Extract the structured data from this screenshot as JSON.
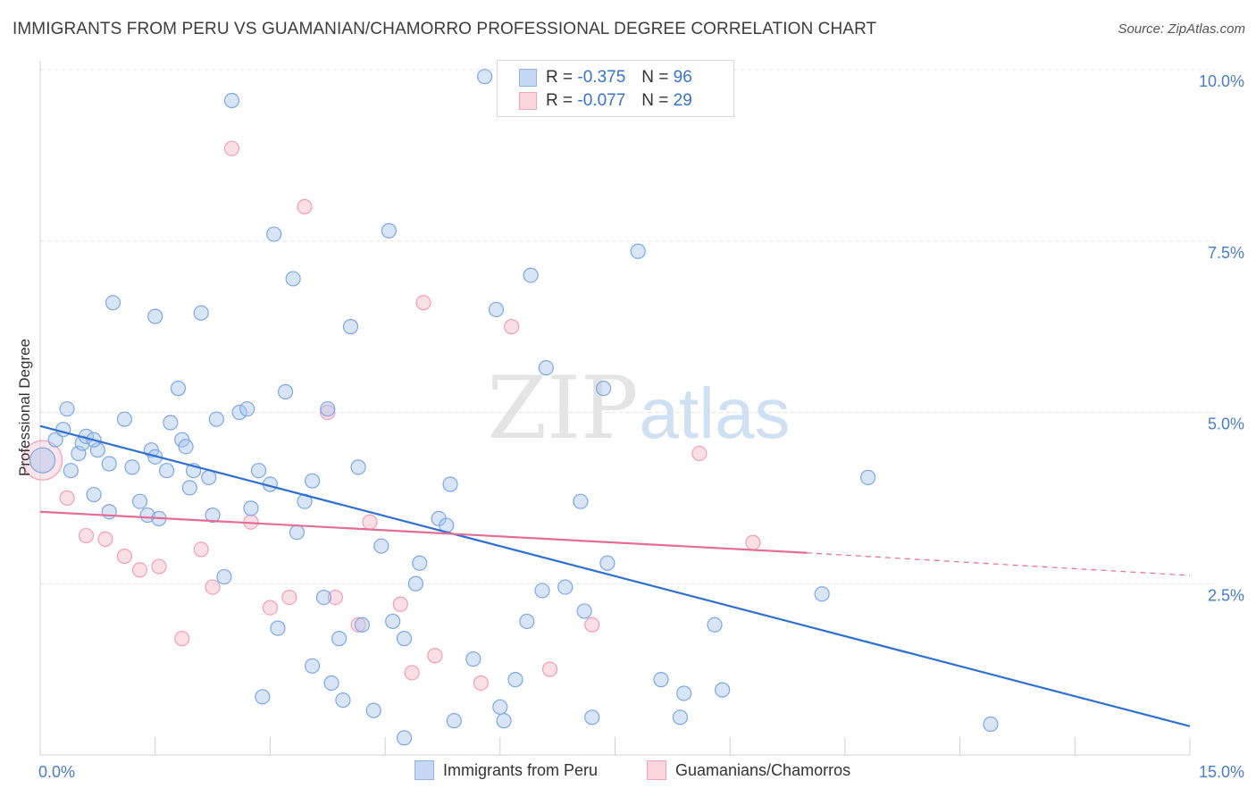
{
  "header": {
    "title": "IMMIGRANTS FROM PERU VS GUAMANIAN/CHAMORRO PROFESSIONAL DEGREE CORRELATION CHART",
    "source": "Source: ZipAtlas.com"
  },
  "watermark": {
    "part1": "ZIP",
    "part2": "atlas"
  },
  "legend": {
    "r_label": "R =",
    "n_label": "N =",
    "rows": [
      {
        "r": "-0.375",
        "n": "96",
        "color": "#a9c6ee"
      },
      {
        "r": "-0.077",
        "n": "29",
        "color": "#f7b9c9"
      }
    ]
  },
  "bottom_legend": [
    {
      "label": "Immigrants from Peru",
      "color": "#a9c6ee"
    },
    {
      "label": "Guamanians/Chamorros",
      "color": "#f7b9c9"
    }
  ],
  "chart_data": {
    "type": "scatter",
    "title": "IMMIGRANTS FROM PERU VS GUAMANIAN/CHAMORRO PROFESSIONAL DEGREE CORRELATION CHART",
    "xlabel": "",
    "ylabel": "Professional Degree",
    "xlim": [
      0,
      15
    ],
    "ylim": [
      0,
      10
    ],
    "x_tick_labels": [
      "0.0%",
      "15.0%"
    ],
    "y_ticks": [
      2.5,
      5.0,
      7.5,
      10.0
    ],
    "y_tick_labels": [
      "2.5%",
      "5.0%",
      "7.5%",
      "10.0%"
    ],
    "grid": true,
    "colors": {
      "blue": "#5b93d9",
      "pink": "#ea7aa0",
      "blue_line": "#2f6fd1",
      "pink_line": "#e46d96"
    },
    "series": [
      {
        "name": "Immigrants from Peru",
        "points": [
          [
            0.03,
            4.3
          ],
          [
            0.2,
            4.6
          ],
          [
            0.3,
            4.75
          ],
          [
            0.35,
            5.05
          ],
          [
            0.4,
            4.15
          ],
          [
            0.5,
            4.4
          ],
          [
            0.55,
            4.55
          ],
          [
            0.6,
            4.65
          ],
          [
            0.7,
            3.8
          ],
          [
            0.75,
            4.45
          ],
          [
            0.7,
            4.6
          ],
          [
            0.9,
            4.25
          ],
          [
            0.9,
            3.55
          ],
          [
            0.95,
            6.6
          ],
          [
            1.1,
            4.9
          ],
          [
            1.2,
            4.2
          ],
          [
            1.3,
            3.7
          ],
          [
            1.4,
            3.5
          ],
          [
            1.45,
            4.45
          ],
          [
            1.5,
            4.35
          ],
          [
            1.55,
            3.45
          ],
          [
            1.5,
            6.4
          ],
          [
            1.65,
            4.15
          ],
          [
            1.7,
            4.85
          ],
          [
            1.8,
            5.35
          ],
          [
            1.85,
            4.6
          ],
          [
            1.9,
            4.5
          ],
          [
            1.95,
            3.9
          ],
          [
            2.0,
            4.15
          ],
          [
            2.1,
            6.45
          ],
          [
            2.2,
            4.05
          ],
          [
            2.25,
            3.5
          ],
          [
            2.3,
            4.9
          ],
          [
            2.4,
            2.6
          ],
          [
            2.5,
            9.55
          ],
          [
            2.6,
            5.0
          ],
          [
            2.7,
            5.05
          ],
          [
            2.75,
            3.6
          ],
          [
            2.85,
            4.15
          ],
          [
            2.9,
            0.85
          ],
          [
            3.0,
            3.95
          ],
          [
            3.05,
            7.6
          ],
          [
            3.1,
            1.85
          ],
          [
            3.2,
            5.3
          ],
          [
            3.3,
            6.95
          ],
          [
            3.35,
            3.25
          ],
          [
            3.45,
            3.7
          ],
          [
            3.55,
            4.0
          ],
          [
            3.55,
            1.3
          ],
          [
            3.7,
            2.3
          ],
          [
            3.75,
            5.05
          ],
          [
            3.8,
            1.05
          ],
          [
            3.9,
            1.7
          ],
          [
            3.95,
            0.8
          ],
          [
            4.05,
            6.25
          ],
          [
            4.15,
            4.2
          ],
          [
            4.2,
            1.9
          ],
          [
            4.35,
            0.65
          ],
          [
            4.45,
            3.05
          ],
          [
            4.55,
            7.65
          ],
          [
            4.6,
            1.95
          ],
          [
            4.75,
            0.25
          ],
          [
            4.75,
            1.7
          ],
          [
            4.9,
            2.5
          ],
          [
            4.95,
            2.8
          ],
          [
            5.2,
            3.45
          ],
          [
            5.3,
            3.35
          ],
          [
            5.35,
            3.95
          ],
          [
            5.4,
            0.5
          ],
          [
            5.65,
            1.4
          ],
          [
            5.8,
            9.9
          ],
          [
            5.95,
            6.5
          ],
          [
            6.0,
            0.7
          ],
          [
            6.05,
            0.5
          ],
          [
            6.2,
            1.1
          ],
          [
            6.35,
            1.95
          ],
          [
            6.4,
            7.0
          ],
          [
            6.55,
            2.4
          ],
          [
            6.6,
            5.65
          ],
          [
            6.85,
            2.45
          ],
          [
            7.05,
            3.7
          ],
          [
            7.1,
            2.1
          ],
          [
            7.2,
            0.55
          ],
          [
            7.35,
            5.35
          ],
          [
            7.4,
            2.8
          ],
          [
            7.8,
            7.35
          ],
          [
            8.1,
            1.1
          ],
          [
            8.35,
            0.55
          ],
          [
            8.4,
            0.9
          ],
          [
            8.8,
            1.9
          ],
          [
            8.9,
            0.95
          ],
          [
            10.2,
            2.35
          ],
          [
            10.8,
            4.05
          ],
          [
            12.4,
            0.45
          ]
        ],
        "trend": {
          "x": [
            0,
            15
          ],
          "y": [
            4.8,
            0.42
          ]
        }
      },
      {
        "name": "Guamanians/Chamorros",
        "points": [
          [
            0.03,
            4.3
          ],
          [
            0.35,
            3.75
          ],
          [
            0.6,
            3.2
          ],
          [
            0.85,
            3.15
          ],
          [
            1.1,
            2.9
          ],
          [
            1.3,
            2.7
          ],
          [
            1.55,
            2.75
          ],
          [
            1.85,
            1.7
          ],
          [
            2.1,
            3.0
          ],
          [
            2.25,
            2.45
          ],
          [
            2.5,
            8.85
          ],
          [
            2.75,
            3.4
          ],
          [
            3.0,
            2.15
          ],
          [
            3.25,
            2.3
          ],
          [
            3.45,
            8.0
          ],
          [
            3.75,
            5.0
          ],
          [
            3.85,
            2.3
          ],
          [
            4.15,
            1.9
          ],
          [
            4.3,
            3.4
          ],
          [
            4.7,
            2.2
          ],
          [
            4.85,
            1.2
          ],
          [
            5.0,
            6.6
          ],
          [
            5.15,
            1.45
          ],
          [
            5.75,
            1.05
          ],
          [
            6.15,
            6.25
          ],
          [
            6.65,
            1.25
          ],
          [
            7.2,
            1.9
          ],
          [
            8.6,
            4.4
          ],
          [
            9.3,
            3.1
          ]
        ],
        "trend": {
          "x": [
            0,
            10.0
          ],
          "y": [
            3.55,
            2.95
          ]
        },
        "trend_extension": {
          "x": [
            10.0,
            15
          ],
          "y": [
            2.95,
            2.62
          ]
        }
      }
    ]
  }
}
